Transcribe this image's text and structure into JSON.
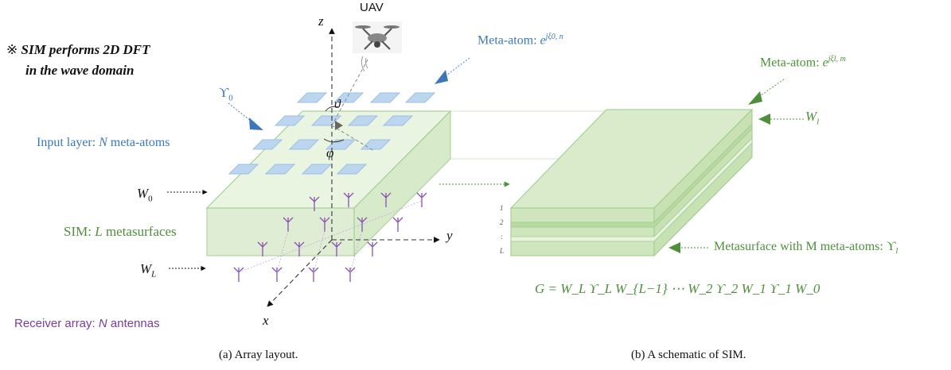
{
  "note": {
    "symbol": "※",
    "line1": "SIM performs 2D DFT",
    "line2": "in the wave domain"
  },
  "uav_label": "UAV",
  "left": {
    "meta_atom_label": "Meta-atom: ",
    "meta_atom_expr": "e",
    "meta_atom_sup": "jξ0, n",
    "upsilon0": "ϒ",
    "upsilon0_sub": "0",
    "input_layer_prefix": "Input layer: ",
    "input_layer_N": "N",
    "input_layer_suffix": " meta-atoms",
    "w0": "W",
    "w0_sub": "0",
    "sim_prefix": "SIM: ",
    "sim_L": "L",
    "sim_suffix": " metasurfaces",
    "wl": "W",
    "wl_sub": "L",
    "receiver_prefix": "Receiver array: ",
    "receiver_N": "N",
    "receiver_suffix": " antennas",
    "theta": "ϑ",
    "phi": "φ",
    "axis_z": "z",
    "axis_y": "y",
    "axis_x": "x"
  },
  "right": {
    "meta_atom_label": "Meta-atom: ",
    "meta_atom_expr": "e",
    "meta_atom_sup": "jξl, m",
    "wl": "W",
    "wl_sub": "l",
    "layer_1": "1",
    "layer_2": "2",
    "layer_dots": ":",
    "layer_L": "L",
    "metasurface_label": "Metasurface with M meta-atoms: ϒ",
    "metasurface_sub": "l",
    "equation": "G = W_L ϒ_L W_{L−1} ⋯ W_2 ϒ_2 W_1 ϒ_1 W_0"
  },
  "captions": {
    "a": "(a) Array layout.",
    "b": "(b) A schematic of SIM."
  },
  "colors": {
    "blue": "#3a78b7",
    "green": "#4f8f3c",
    "purple": "#7a3b9a",
    "tile": "#b9d3ee",
    "slab": "#d7ecc9"
  }
}
